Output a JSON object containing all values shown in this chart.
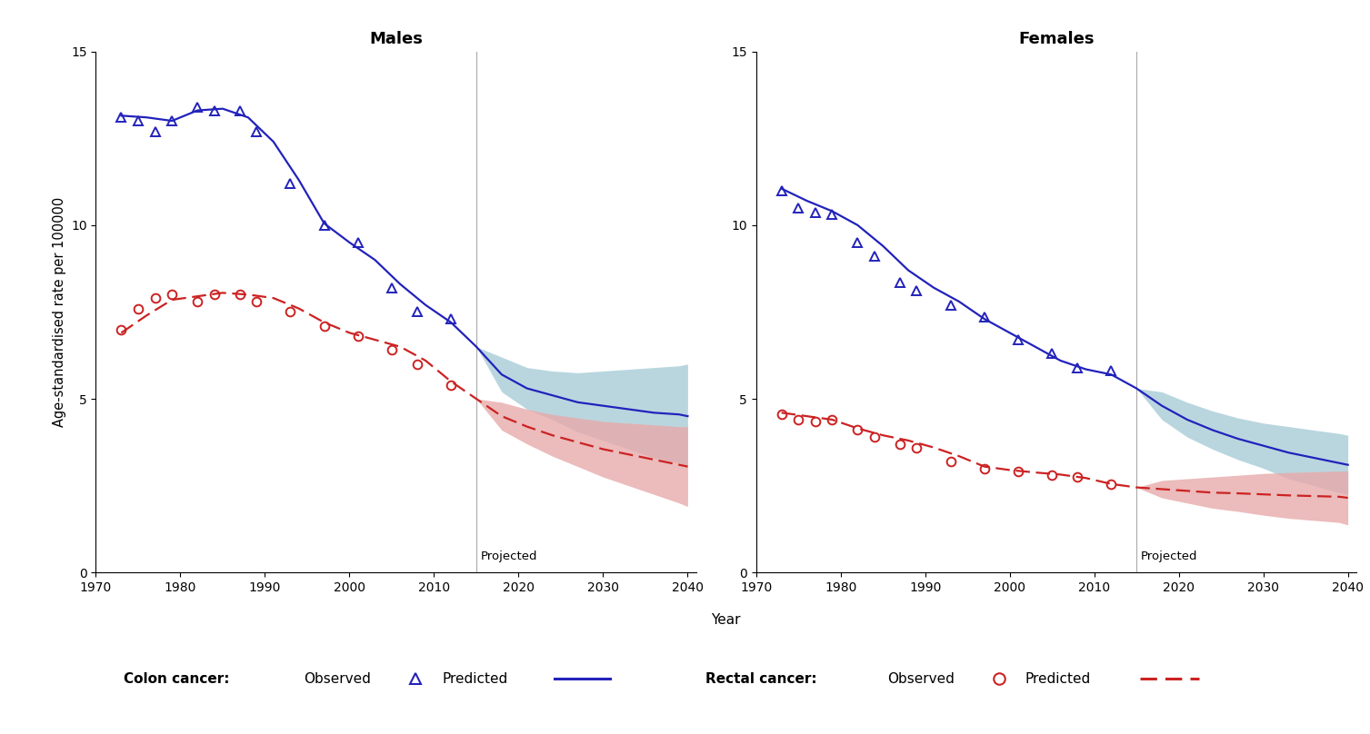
{
  "males_colon_obs_x": [
    1973,
    1975,
    1977,
    1979,
    1982,
    1984,
    1987,
    1989,
    1993,
    1997,
    2001,
    2005,
    2008,
    2012
  ],
  "males_colon_obs_y": [
    13.1,
    13.0,
    12.7,
    13.0,
    13.4,
    13.3,
    13.3,
    12.7,
    11.2,
    10.0,
    9.5,
    8.2,
    7.5,
    7.3
  ],
  "males_colon_pred_x": [
    1973,
    1976,
    1979,
    1982,
    1985,
    1988,
    1991,
    1994,
    1997,
    2000,
    2003,
    2006,
    2009,
    2012,
    2015,
    2018,
    2021,
    2024,
    2027,
    2030,
    2033,
    2036,
    2039,
    2040
  ],
  "males_colon_pred_y": [
    13.15,
    13.1,
    13.0,
    13.3,
    13.35,
    13.1,
    12.4,
    11.3,
    10.05,
    9.5,
    9.0,
    8.3,
    7.7,
    7.2,
    6.5,
    5.7,
    5.3,
    5.1,
    4.9,
    4.8,
    4.7,
    4.6,
    4.55,
    4.5
  ],
  "males_colon_ci_x": [
    2015,
    2018,
    2021,
    2024,
    2027,
    2030,
    2033,
    2036,
    2039,
    2040
  ],
  "males_colon_ci_upper": [
    6.5,
    6.2,
    5.9,
    5.8,
    5.75,
    5.8,
    5.85,
    5.9,
    5.95,
    6.0
  ],
  "males_colon_ci_lower": [
    6.5,
    5.2,
    4.7,
    4.4,
    4.05,
    3.8,
    3.55,
    3.3,
    3.15,
    3.0
  ],
  "males_rectal_obs_x": [
    1973,
    1975,
    1977,
    1979,
    1982,
    1984,
    1987,
    1989,
    1993,
    1997,
    2001,
    2005,
    2008,
    2012
  ],
  "males_rectal_obs_y": [
    7.0,
    7.6,
    7.9,
    8.0,
    7.8,
    8.0,
    8.0,
    7.8,
    7.5,
    7.1,
    6.8,
    6.4,
    6.0,
    5.4
  ],
  "males_rectal_pred_x": [
    1973,
    1976,
    1979,
    1982,
    1985,
    1988,
    1991,
    1994,
    1997,
    2000,
    2003,
    2006,
    2009,
    2012,
    2015,
    2018,
    2021,
    2024,
    2027,
    2030,
    2033,
    2036,
    2039,
    2040
  ],
  "males_rectal_pred_y": [
    6.9,
    7.4,
    7.85,
    7.95,
    8.05,
    8.0,
    7.9,
    7.6,
    7.2,
    6.9,
    6.7,
    6.5,
    6.1,
    5.5,
    5.0,
    4.5,
    4.2,
    3.95,
    3.75,
    3.55,
    3.4,
    3.25,
    3.1,
    3.05
  ],
  "males_rectal_ci_x": [
    2015,
    2018,
    2021,
    2024,
    2027,
    2030,
    2033,
    2036,
    2039,
    2040
  ],
  "males_rectal_ci_upper": [
    5.0,
    4.9,
    4.7,
    4.55,
    4.45,
    4.35,
    4.3,
    4.25,
    4.2,
    4.2
  ],
  "males_rectal_ci_lower": [
    5.0,
    4.1,
    3.7,
    3.35,
    3.05,
    2.75,
    2.5,
    2.25,
    2.0,
    1.9
  ],
  "females_colon_obs_x": [
    1973,
    1975,
    1977,
    1979,
    1982,
    1984,
    1987,
    1989,
    1993,
    1997,
    2001,
    2005,
    2008,
    2012
  ],
  "females_colon_obs_y": [
    11.0,
    10.5,
    10.35,
    10.3,
    9.5,
    9.1,
    8.35,
    8.1,
    7.7,
    7.35,
    6.7,
    6.3,
    5.9,
    5.8
  ],
  "females_colon_pred_x": [
    1973,
    1976,
    1979,
    1982,
    1985,
    1988,
    1991,
    1994,
    1997,
    2000,
    2003,
    2006,
    2009,
    2012,
    2015,
    2018,
    2021,
    2024,
    2027,
    2030,
    2033,
    2036,
    2039,
    2040
  ],
  "females_colon_pred_y": [
    11.05,
    10.7,
    10.4,
    10.0,
    9.4,
    8.7,
    8.2,
    7.8,
    7.3,
    6.9,
    6.5,
    6.1,
    5.85,
    5.7,
    5.3,
    4.8,
    4.4,
    4.1,
    3.85,
    3.65,
    3.45,
    3.3,
    3.15,
    3.1
  ],
  "females_colon_ci_x": [
    2015,
    2018,
    2021,
    2024,
    2027,
    2030,
    2033,
    2036,
    2039,
    2040
  ],
  "females_colon_ci_upper": [
    5.3,
    5.2,
    4.9,
    4.65,
    4.45,
    4.3,
    4.2,
    4.1,
    4.0,
    3.95
  ],
  "females_colon_ci_lower": [
    5.3,
    4.4,
    3.9,
    3.55,
    3.25,
    3.0,
    2.7,
    2.5,
    2.3,
    2.25
  ],
  "females_rectal_obs_x": [
    1973,
    1975,
    1977,
    1979,
    1982,
    1984,
    1987,
    1989,
    1993,
    1997,
    2001,
    2005,
    2008,
    2012
  ],
  "females_rectal_obs_y": [
    4.55,
    4.4,
    4.35,
    4.4,
    4.1,
    3.9,
    3.7,
    3.6,
    3.2,
    3.0,
    2.9,
    2.8,
    2.75,
    2.55
  ],
  "females_rectal_pred_x": [
    1973,
    1976,
    1979,
    1982,
    1985,
    1988,
    1991,
    1994,
    1997,
    2000,
    2003,
    2006,
    2009,
    2012,
    2015,
    2018,
    2021,
    2024,
    2027,
    2030,
    2033,
    2036,
    2039,
    2040
  ],
  "females_rectal_pred_y": [
    4.6,
    4.5,
    4.4,
    4.15,
    3.95,
    3.8,
    3.6,
    3.35,
    3.05,
    2.95,
    2.88,
    2.82,
    2.72,
    2.55,
    2.45,
    2.4,
    2.35,
    2.3,
    2.28,
    2.25,
    2.22,
    2.2,
    2.18,
    2.15
  ],
  "females_rectal_ci_x": [
    2015,
    2018,
    2021,
    2024,
    2027,
    2030,
    2033,
    2036,
    2039,
    2040
  ],
  "females_rectal_ci_upper": [
    2.45,
    2.65,
    2.7,
    2.75,
    2.8,
    2.85,
    2.88,
    2.9,
    2.92,
    2.93
  ],
  "females_rectal_ci_lower": [
    2.45,
    2.15,
    2.0,
    1.85,
    1.76,
    1.65,
    1.56,
    1.5,
    1.44,
    1.37
  ],
  "projection_start": 2015,
  "xlim": [
    1970,
    2041
  ],
  "ylim": [
    0,
    15
  ],
  "xticks": [
    1970,
    1980,
    1990,
    2000,
    2010,
    2020,
    2030,
    2040
  ],
  "yticks": [
    0,
    5,
    10,
    15
  ],
  "colon_color": "#2222bb",
  "rectal_color": "#cc2222",
  "colon_ci_color": "#a8ccd8",
  "rectal_ci_color": "#e8aaaa",
  "ylabel": "Age-standardised rate per 100000",
  "xlabel": "Year",
  "title_males": "Males",
  "title_females": "Females",
  "projected_label": "Projected"
}
